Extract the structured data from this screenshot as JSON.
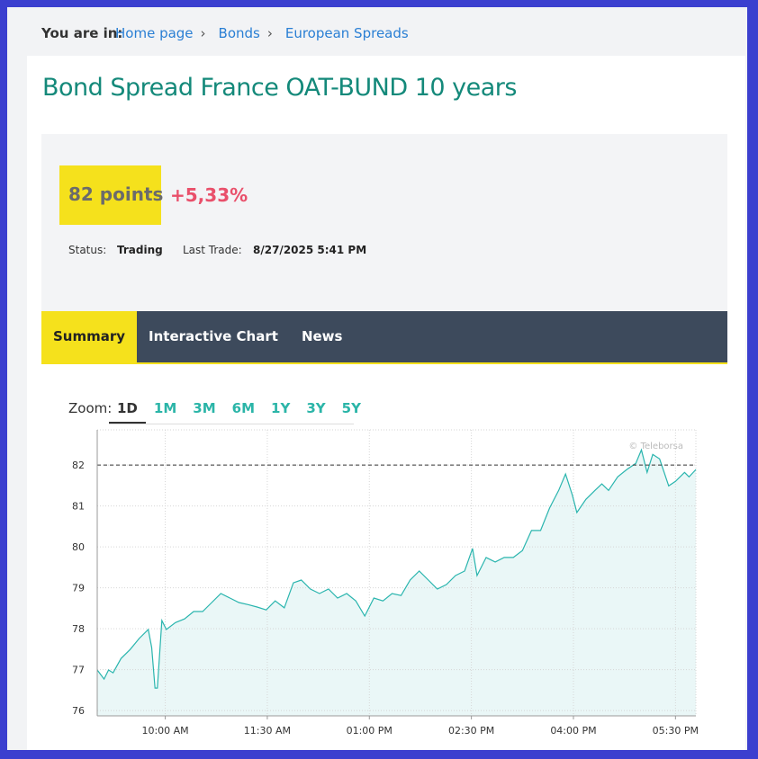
{
  "breadcrumb": {
    "label": "You are in:",
    "separator": "›",
    "items": [
      "Home page",
      "Bonds",
      "European Spreads"
    ]
  },
  "title": "Bond Spread France OAT-BUND 10 years",
  "quote": {
    "value_label": "82 points",
    "change": "+5,33%",
    "status_label": "Status:",
    "status": "Trading",
    "last_trade_label": "Last Trade:",
    "last_trade": "8/27/2025 5:41 PM"
  },
  "tabs": [
    "Summary",
    "Interactive Chart",
    "News"
  ],
  "zoom": {
    "label": "Zoom:",
    "options": [
      "1D",
      "1M",
      "3M",
      "6M",
      "1Y",
      "3Y",
      "5Y"
    ]
  },
  "chart_data": {
    "type": "line",
    "watermark": "© Teleborsa",
    "color": "#2ab5ae",
    "fill": "#eaf7f7",
    "grid": true,
    "last_value": 82,
    "xlim": [
      540,
      1068
    ],
    "ylim": [
      75.87,
      82.86
    ],
    "xticks": [
      {
        "value": 600,
        "label": "10:00 AM"
      },
      {
        "value": 690,
        "label": "11:30 AM"
      },
      {
        "value": 780,
        "label": "01:00 PM"
      },
      {
        "value": 870,
        "label": "02:30 PM"
      },
      {
        "value": 960,
        "label": "04:00 PM"
      },
      {
        "value": 1050,
        "label": "05:30 PM"
      }
    ],
    "yticks": [
      76,
      77,
      78,
      79,
      80,
      81,
      82
    ],
    "x": [
      540,
      546,
      550,
      554,
      561,
      569,
      577,
      585,
      588,
      591,
      593,
      597,
      601,
      609,
      617,
      625,
      633,
      641,
      649,
      657,
      665,
      673,
      681,
      689,
      697,
      705,
      713,
      720,
      728,
      736,
      744,
      752,
      760,
      768,
      776,
      784,
      792,
      800,
      808,
      816,
      824,
      832,
      840,
      848,
      856,
      864,
      871,
      875,
      883,
      891,
      899,
      907,
      915,
      923,
      931,
      939,
      947,
      953,
      959,
      963,
      971,
      979,
      985,
      991,
      999,
      1007,
      1015,
      1020,
      1025,
      1030,
      1036,
      1044,
      1050,
      1058,
      1062,
      1068
    ],
    "values": [
      76.99,
      76.77,
      76.99,
      76.92,
      77.27,
      77.49,
      77.76,
      77.98,
      77.54,
      76.55,
      76.55,
      78.2,
      77.98,
      78.15,
      78.24,
      78.42,
      78.42,
      78.64,
      78.86,
      78.75,
      78.64,
      78.59,
      78.53,
      78.46,
      78.68,
      78.51,
      79.12,
      79.19,
      78.97,
      78.86,
      78.97,
      78.75,
      78.86,
      78.68,
      78.31,
      78.75,
      78.68,
      78.86,
      78.81,
      79.19,
      79.41,
      79.19,
      78.97,
      79.08,
      79.3,
      79.41,
      79.96,
      79.3,
      79.74,
      79.63,
      79.74,
      79.74,
      79.91,
      80.4,
      80.4,
      80.95,
      81.38,
      81.78,
      81.27,
      80.84,
      81.16,
      81.38,
      81.54,
      81.38,
      81.71,
      81.89,
      82.04,
      82.37,
      81.82,
      82.26,
      82.15,
      81.49,
      81.6,
      81.82,
      81.71,
      81.89
    ]
  }
}
